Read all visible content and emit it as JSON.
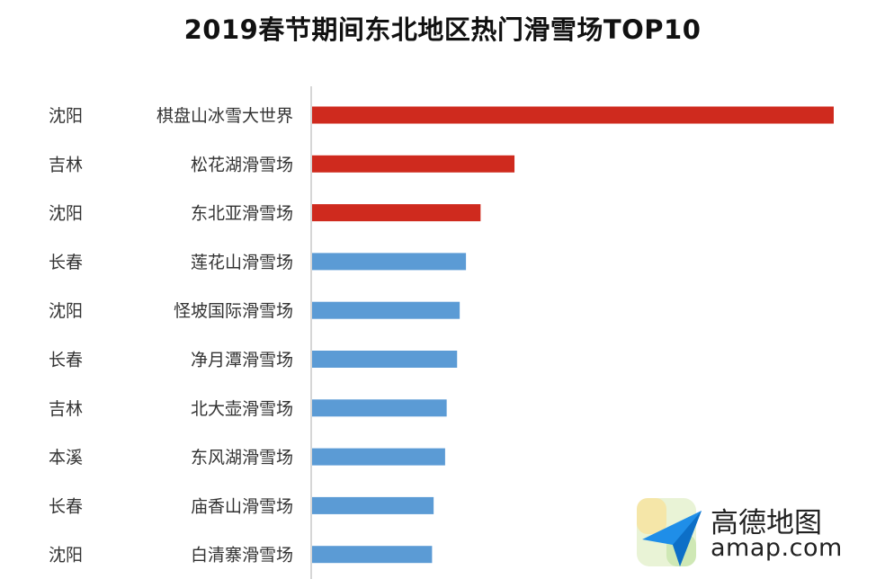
{
  "chart_data": {
    "type": "bar",
    "orientation": "horizontal",
    "title": "2019春节期间东北地区热门滑雪场TOP10",
    "categories": [
      "棋盘山冰雪大世界",
      "松花湖滑雪场",
      "东北亚滑雪场",
      "莲花山滑雪场",
      "怪坡国际滑雪场",
      "净月潭滑雪场",
      "北大壶滑雪场",
      "东风湖滑雪场",
      "庙香山滑雪场",
      "白清寨滑雪场"
    ],
    "cities": [
      "沈阳",
      "吉林",
      "沈阳",
      "长春",
      "沈阳",
      "长春",
      "吉林",
      "本溪",
      "长春",
      "沈阳"
    ],
    "values": [
      100,
      38.8,
      32.3,
      29.5,
      28.3,
      27.8,
      25.8,
      25.5,
      23.3,
      23
    ],
    "xlim": [
      0,
      100
    ],
    "grid": false,
    "legend": "none",
    "colors": {
      "top3": "#cf2a1e",
      "others": "#5b9bd5",
      "axis": "#c8c8c8",
      "label": "#333333"
    }
  },
  "watermark": {
    "name": "高德地图",
    "domain": "amap.com"
  }
}
